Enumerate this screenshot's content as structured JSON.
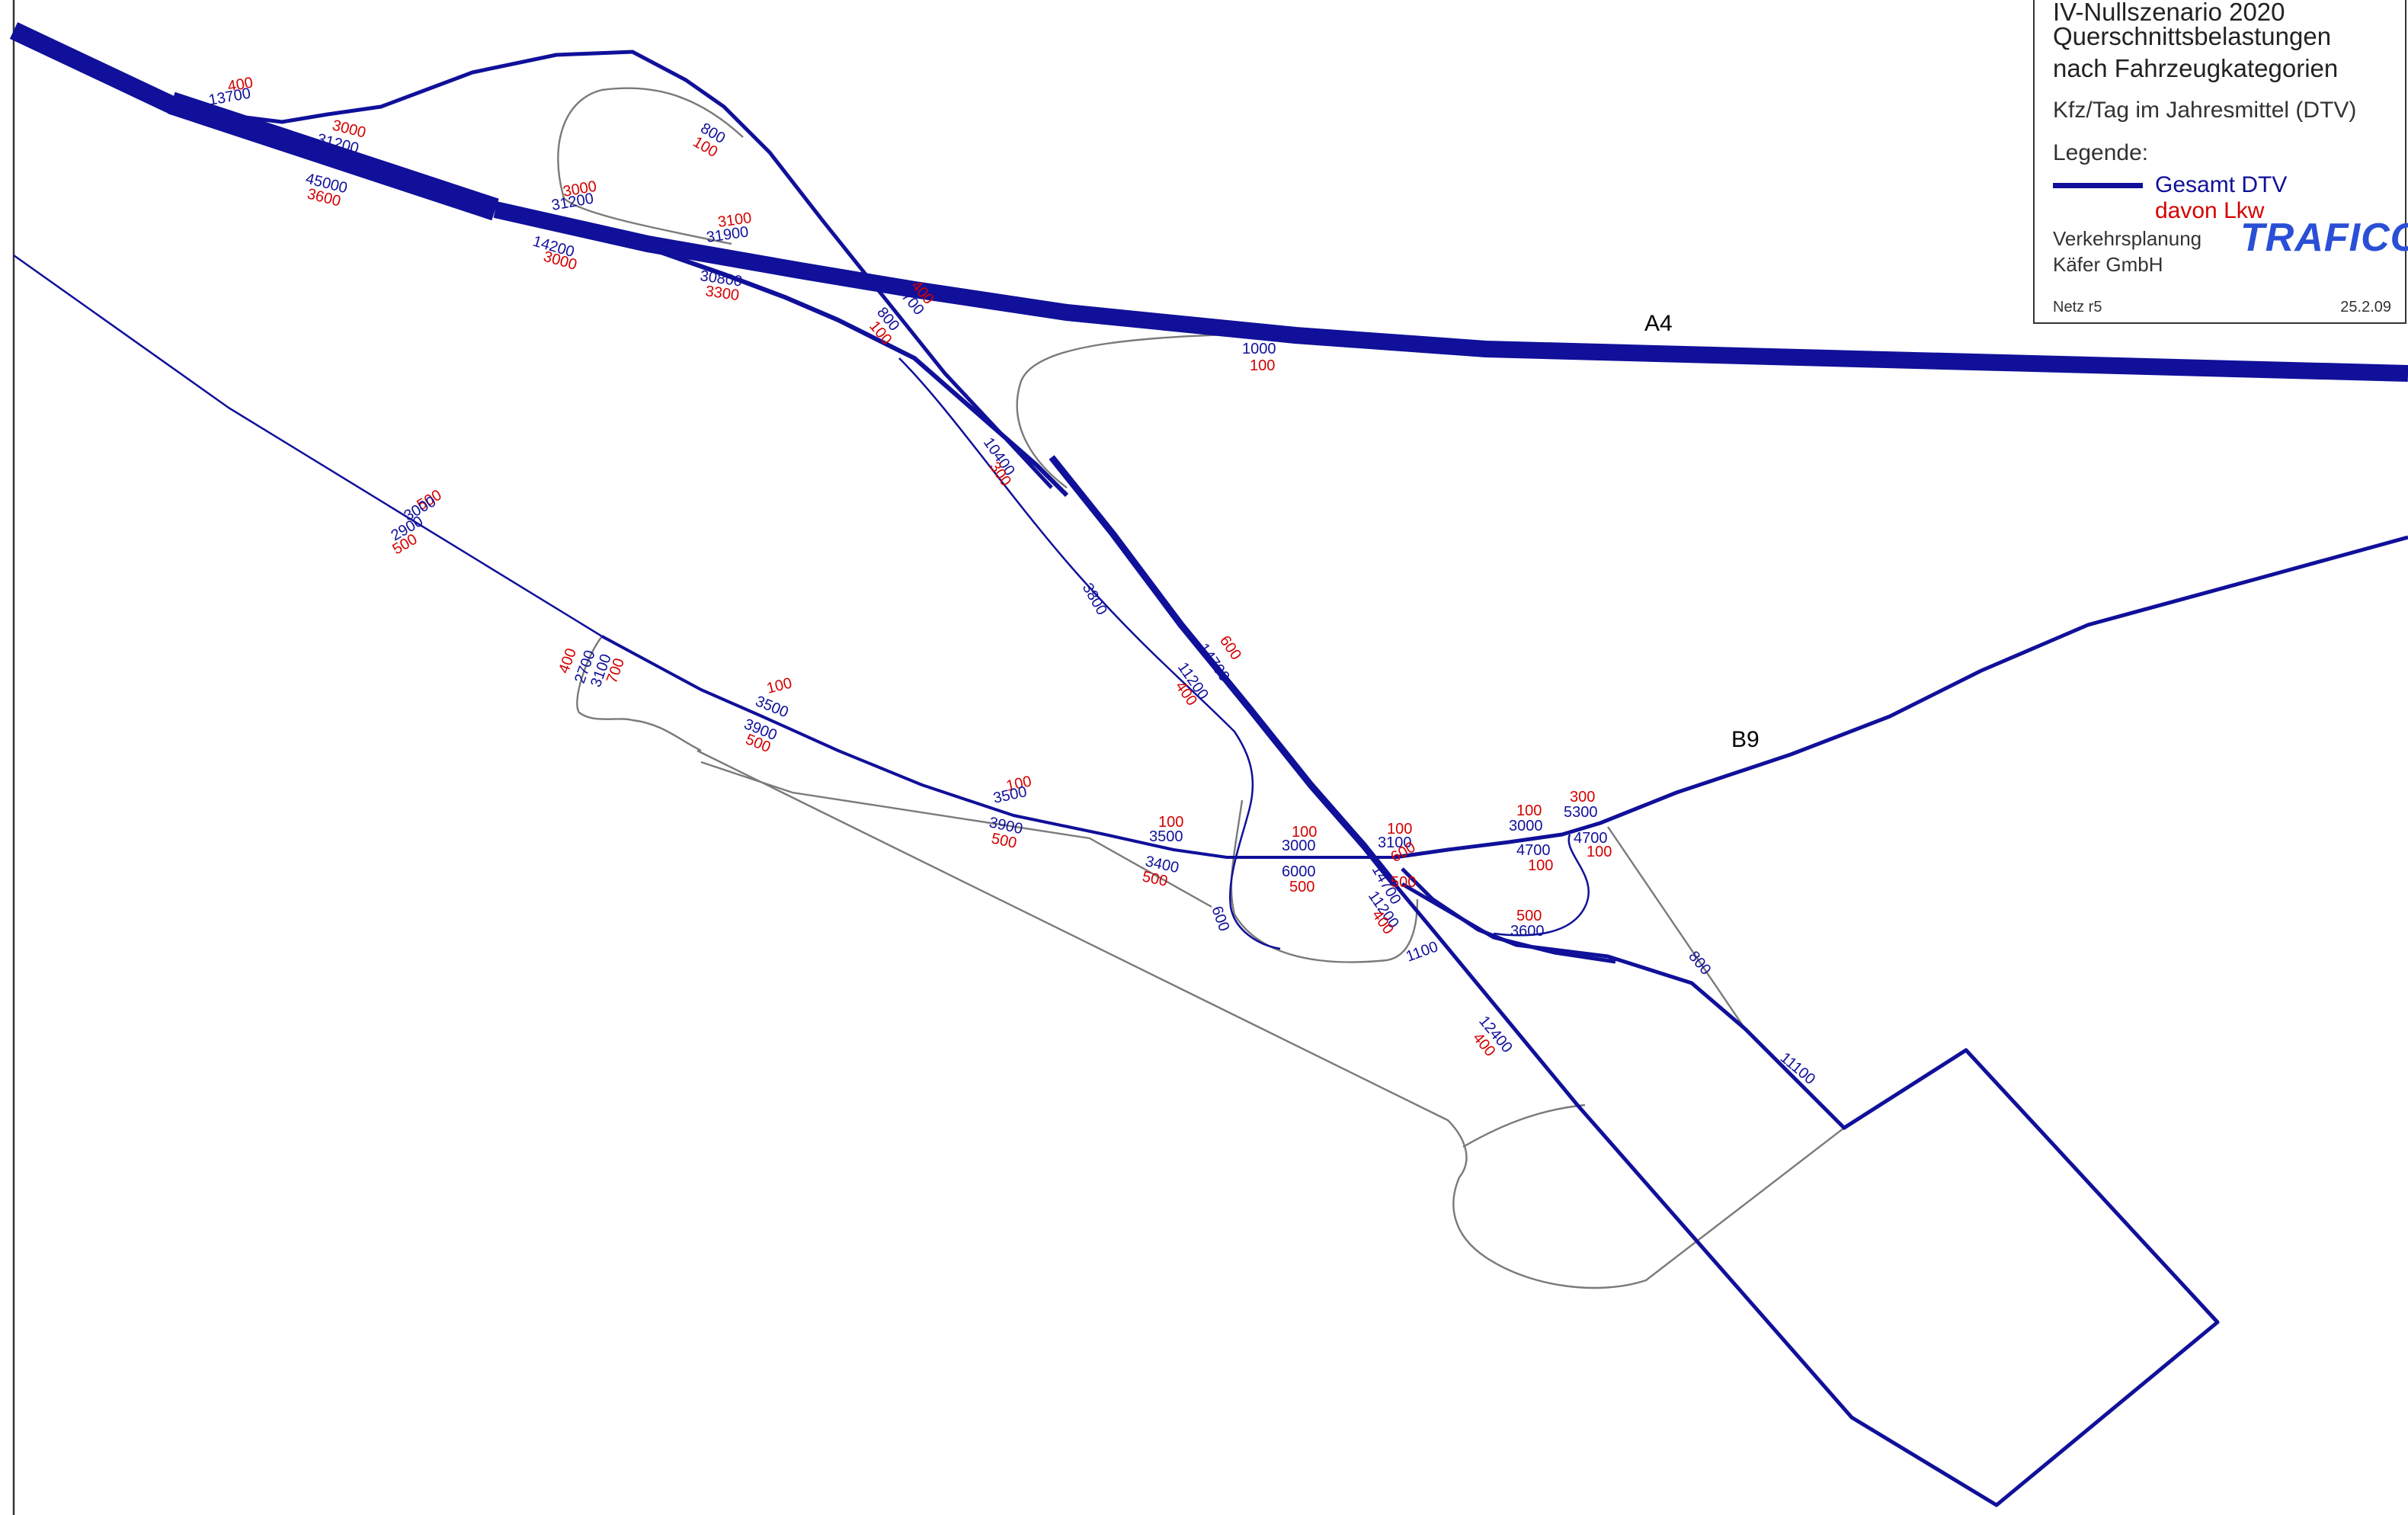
{
  "legend": {
    "title_line1": "IV-Nullszenario 2020",
    "title_line2": "Querschnittsbelastungen",
    "title_line3": "nach Fahrzeugkategorien",
    "unit": "Kfz/Tag im Jahresmittel (DTV)",
    "legend_heading": "Legende:",
    "total_label": "Gesamt DTV",
    "truck_label": "davon Lkw",
    "company_line1": "Verkehrsplanung",
    "company_line2": "Käfer GmbH",
    "logo": "TRAFICO",
    "network": "Netz r5",
    "date": "25.2.09"
  },
  "colors": {
    "total": "#10109a",
    "truck": "#d40000",
    "minor_road": "#7a7a7a"
  },
  "road_names": [
    "A4",
    "B9"
  ],
  "labels": [
    {
      "text": "400",
      "kind": "lkw"
    },
    {
      "text": "13700",
      "kind": "dtv"
    },
    {
      "text": "3000",
      "kind": "lkw"
    },
    {
      "text": "31200",
      "kind": "dtv"
    },
    {
      "text": "45000",
      "kind": "dtv"
    },
    {
      "text": "3600",
      "kind": "lkw"
    },
    {
      "text": "800",
      "kind": "dtv"
    },
    {
      "text": "100",
      "kind": "lkw"
    },
    {
      "text": "3000",
      "kind": "lkw"
    },
    {
      "text": "31200",
      "kind": "dtv"
    },
    {
      "text": "14200",
      "kind": "dtv"
    },
    {
      "text": "3000",
      "kind": "lkw"
    },
    {
      "text": "3100",
      "kind": "lkw"
    },
    {
      "text": "31900",
      "kind": "dtv"
    },
    {
      "text": "30800",
      "kind": "dtv"
    },
    {
      "text": "3300",
      "kind": "lkw"
    },
    {
      "text": "13700",
      "kind": "dtv"
    },
    {
      "text": "400",
      "kind": "lkw"
    },
    {
      "text": "800",
      "kind": "dtv"
    },
    {
      "text": "100",
      "kind": "lkw"
    },
    {
      "text": "1000",
      "kind": "dtv"
    },
    {
      "text": "100",
      "kind": "lkw"
    },
    {
      "text": "10400",
      "kind": "dtv"
    },
    {
      "text": "300",
      "kind": "lkw"
    },
    {
      "text": "500",
      "kind": "lkw"
    },
    {
      "text": "3000",
      "kind": "dtv"
    },
    {
      "text": "2900",
      "kind": "dtv"
    },
    {
      "text": "500",
      "kind": "lkw"
    },
    {
      "text": "3800",
      "kind": "dtv"
    },
    {
      "text": "400",
      "kind": "lkw"
    },
    {
      "text": "2700",
      "kind": "dtv"
    },
    {
      "text": "3100",
      "kind": "dtv"
    },
    {
      "text": "700",
      "kind": "lkw"
    },
    {
      "text": "600",
      "kind": "lkw"
    },
    {
      "text": "14700",
      "kind": "dtv"
    },
    {
      "text": "11200",
      "kind": "dtv"
    },
    {
      "text": "400",
      "kind": "lkw"
    },
    {
      "text": "100",
      "kind": "lkw"
    },
    {
      "text": "3500",
      "kind": "dtv"
    },
    {
      "text": "3900",
      "kind": "dtv"
    },
    {
      "text": "500",
      "kind": "lkw"
    },
    {
      "text": "100",
      "kind": "lkw"
    },
    {
      "text": "3500",
      "kind": "dtv"
    },
    {
      "text": "3900",
      "kind": "dtv"
    },
    {
      "text": "500",
      "kind": "lkw"
    },
    {
      "text": "100",
      "kind": "lkw"
    },
    {
      "text": "3500",
      "kind": "dtv"
    },
    {
      "text": "3400",
      "kind": "dtv"
    },
    {
      "text": "500",
      "kind": "lkw"
    },
    {
      "text": "100",
      "kind": "lkw"
    },
    {
      "text": "3000",
      "kind": "dtv"
    },
    {
      "text": "6000",
      "kind": "dtv"
    },
    {
      "text": "500",
      "kind": "lkw"
    },
    {
      "text": "600",
      "kind": "dtv"
    },
    {
      "text": "100",
      "kind": "lkw"
    },
    {
      "text": "3100",
      "kind": "dtv"
    },
    {
      "text": "600",
      "kind": "lkw"
    },
    {
      "text": "14700",
      "kind": "dtv"
    },
    {
      "text": "500",
      "kind": "lkw"
    },
    {
      "text": "11200",
      "kind": "dtv"
    },
    {
      "text": "400",
      "kind": "lkw"
    },
    {
      "text": "1100",
      "kind": "dtv"
    },
    {
      "text": "100",
      "kind": "lkw"
    },
    {
      "text": "3000",
      "kind": "dtv"
    },
    {
      "text": "300",
      "kind": "lkw"
    },
    {
      "text": "5300",
      "kind": "dtv"
    },
    {
      "text": "4700",
      "kind": "dtv"
    },
    {
      "text": "100",
      "kind": "lkw"
    },
    {
      "text": "4700",
      "kind": "dtv"
    },
    {
      "text": "100",
      "kind": "lkw"
    },
    {
      "text": "500",
      "kind": "lkw"
    },
    {
      "text": "3600",
      "kind": "dtv"
    },
    {
      "text": "800",
      "kind": "dtv"
    },
    {
      "text": "12400",
      "kind": "dtv"
    },
    {
      "text": "400",
      "kind": "lkw"
    },
    {
      "text": "11100",
      "kind": "dtv"
    }
  ]
}
